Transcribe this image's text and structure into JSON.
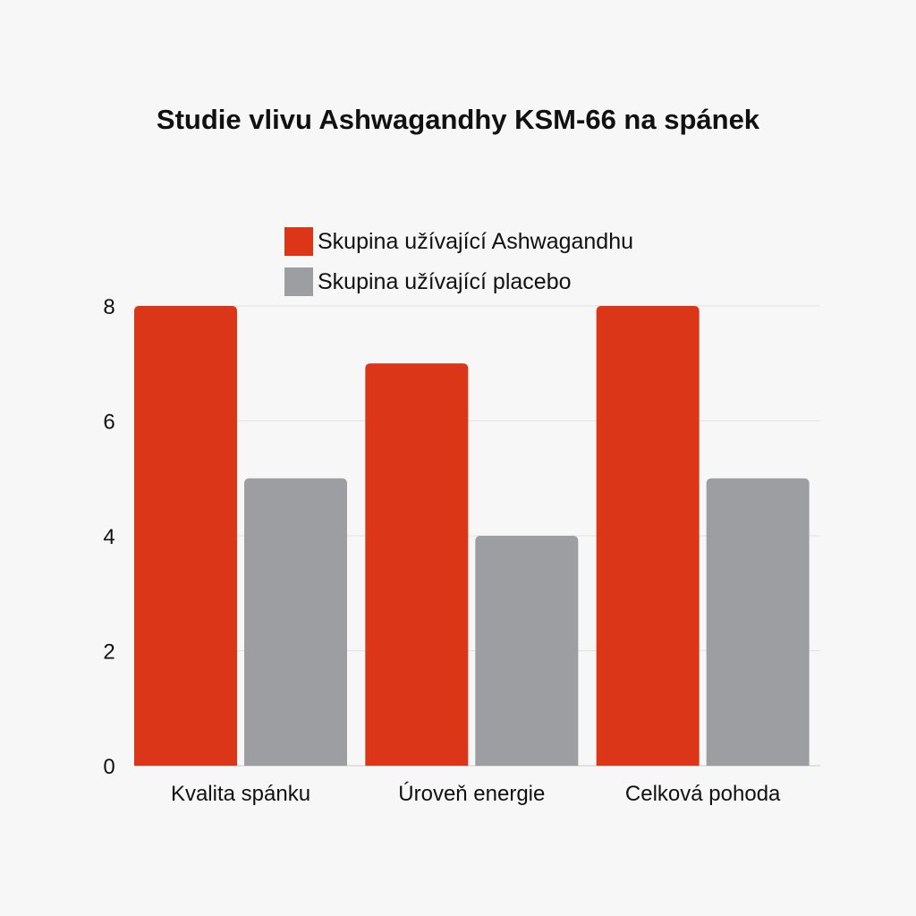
{
  "chart_data": {
    "type": "bar",
    "title": "Studie vlivu Ashwagandhy KSM-66 na spánek",
    "categories": [
      "Kvalita spánku",
      "Úroveň energie",
      "Celková pohoda"
    ],
    "series": [
      {
        "name": "Skupina užívající Ashwagandhu",
        "values": [
          8,
          7,
          8
        ],
        "color": "#dc3618"
      },
      {
        "name": "Skupina užívající placebo",
        "values": [
          5,
          4,
          5
        ],
        "color": "#9d9ea1"
      }
    ],
    "xlabel": "",
    "ylabel": "",
    "ylim": [
      0,
      8
    ],
    "yticks": [
      "0",
      "2",
      "4",
      "6",
      "8"
    ],
    "grid": true,
    "legend": "top-center"
  }
}
